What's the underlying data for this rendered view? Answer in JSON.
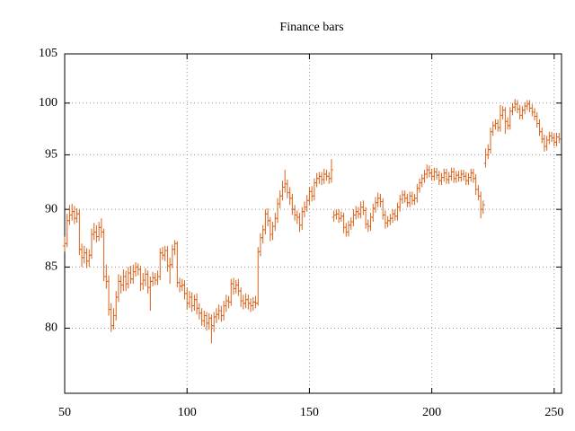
{
  "chart_data": {
    "type": "financebars",
    "title": "Finance bars",
    "color": "#d9621a",
    "grid": true,
    "ylog": true,
    "xlim": [
      50,
      253
    ],
    "xticks": [
      50,
      100,
      150,
      200,
      250
    ],
    "ylim": [
      75,
      105
    ],
    "yticks": [
      80,
      85,
      90,
      95,
      100,
      105
    ],
    "x": [
      50,
      51,
      52,
      53,
      54,
      55,
      56,
      57,
      58,
      59,
      60,
      61,
      62,
      63,
      64,
      65,
      66,
      67,
      68,
      69,
      70,
      71,
      72,
      73,
      74,
      75,
      76,
      77,
      78,
      79,
      80,
      81,
      82,
      83,
      84,
      85,
      86,
      87,
      88,
      89,
      90,
      91,
      92,
      93,
      94,
      95,
      96,
      97,
      98,
      99,
      100,
      101,
      102,
      103,
      104,
      105,
      106,
      107,
      108,
      109,
      110,
      111,
      112,
      113,
      114,
      115,
      116,
      117,
      118,
      119,
      120,
      121,
      122,
      123,
      124,
      125,
      126,
      127,
      128,
      129,
      130,
      131,
      132,
      133,
      134,
      135,
      136,
      137,
      138,
      139,
      140,
      141,
      142,
      143,
      144,
      145,
      146,
      147,
      148,
      149,
      150,
      151,
      152,
      153,
      154,
      155,
      156,
      157,
      158,
      159,
      160,
      161,
      162,
      163,
      164,
      165,
      166,
      167,
      168,
      169,
      170,
      171,
      172,
      173,
      174,
      175,
      176,
      177,
      178,
      179,
      180,
      181,
      182,
      183,
      184,
      185,
      186,
      187,
      188,
      189,
      190,
      191,
      192,
      193,
      194,
      195,
      196,
      197,
      198,
      199,
      200,
      201,
      202,
      203,
      204,
      205,
      206,
      207,
      208,
      209,
      210,
      211,
      212,
      213,
      214,
      215,
      216,
      217,
      218,
      219,
      220,
      221,
      222,
      223,
      224,
      225,
      226,
      227,
      228,
      229,
      230,
      231,
      232,
      233,
      234,
      235,
      236,
      237,
      238,
      239,
      240,
      241,
      242,
      243,
      244,
      245,
      246,
      247,
      248,
      249,
      250,
      251,
      252
    ],
    "open": [
      86.8,
      87.0,
      89.0,
      89.5,
      89.8,
      89.2,
      89.6,
      86.5,
      85.8,
      86.2,
      85.5,
      86.0,
      87.8,
      88.0,
      87.6,
      88.4,
      88.0,
      84.2,
      83.8,
      81.5,
      80.2,
      81.0,
      82.5,
      83.8,
      83.5,
      84.2,
      83.6,
      84.5,
      84.0,
      84.6,
      85.0,
      84.8,
      83.6,
      83.9,
      84.4,
      83.3,
      83.8,
      84.1,
      83.9,
      84.2,
      86.2,
      86.0,
      86.4,
      85.1,
      85.2,
      86.5,
      87.0,
      83.7,
      83.4,
      83.5,
      82.8,
      82.0,
      82.5,
      81.8,
      82.3,
      81.6,
      81.2,
      80.6,
      81.0,
      80.4,
      80.8,
      80.2,
      80.9,
      81.1,
      81.4,
      81.0,
      81.8,
      82.2,
      82.1,
      83.6,
      83.2,
      83.5,
      83.0,
      82.2,
      82.0,
      82.3,
      82.0,
      81.8,
      82.1,
      82.0,
      86.3,
      87.5,
      88.2,
      89.6,
      89.0,
      87.8,
      88.5,
      89.2,
      90.5,
      91.2,
      92.0,
      92.3,
      91.5,
      91.0,
      90.0,
      89.5,
      89.3,
      88.6,
      89.8,
      90.2,
      90.8,
      91.6,
      91.2,
      92.4,
      92.8,
      93.0,
      92.7,
      93.2,
      93.0,
      92.8,
      89.3,
      89.5,
      89.6,
      89.2,
      89.4,
      88.4,
      88.0,
      88.6,
      88.9,
      89.5,
      89.8,
      89.6,
      90.2,
      89.9,
      88.7,
      88.5,
      89.3,
      90.1,
      90.6,
      91.0,
      90.7,
      89.5,
      88.8,
      89.0,
      89.2,
      89.6,
      89.4,
      90.2,
      90.9,
      91.3,
      91.0,
      90.6,
      91.2,
      90.8,
      91.0,
      91.9,
      92.4,
      92.8,
      93.2,
      93.6,
      93.3,
      93.0,
      93.4,
      93.1,
      92.6,
      92.9,
      93.3,
      92.7,
      93.0,
      93.4,
      92.8,
      93.1,
      92.9,
      93.2,
      93.0,
      92.6,
      92.9,
      93.3,
      92.8,
      91.8,
      91.2,
      90.0,
      94.2,
      95.0,
      95.5,
      97.2,
      97.8,
      98.0,
      97.6,
      98.8,
      99.3,
      98.2,
      97.8,
      99.2,
      99.6,
      99.9,
      99.4,
      98.8,
      99.3,
      99.7,
      99.9,
      99.5,
      99.1,
      98.7,
      98.0,
      97.2,
      96.5,
      95.8,
      96.4,
      96.8,
      96.6,
      96.2,
      96.7
    ],
    "high": [
      87.6,
      89.6,
      90.4,
      90.5,
      90.3,
      90.1,
      90.0,
      87.0,
      86.8,
      86.6,
      86.5,
      88.3,
      88.8,
      88.6,
      88.9,
      89.2,
      88.3,
      85.2,
      84.3,
      82.0,
      81.6,
      83.0,
      84.4,
      84.3,
      84.8,
      84.7,
      85.0,
      85.1,
      85.2,
      85.4,
      85.3,
      85.1,
      84.5,
      84.9,
      84.7,
      84.2,
      84.6,
      84.5,
      84.7,
      86.6,
      86.7,
      86.8,
      86.8,
      85.8,
      86.9,
      87.3,
      87.2,
      84.1,
      84.0,
      83.9,
      83.3,
      83.0,
      82.9,
      82.7,
      82.8,
      82.0,
      81.6,
      81.4,
      81.3,
      81.2,
      81.1,
      81.3,
      81.6,
      81.9,
      81.8,
      82.2,
      82.7,
      82.6,
      84.0,
      84.1,
      83.9,
      84.0,
      83.3,
      82.7,
      82.8,
      82.7,
      82.4,
      82.5,
      82.6,
      86.7,
      87.9,
      88.6,
      90.0,
      90.1,
      89.3,
      88.9,
      89.7,
      91.0,
      91.7,
      92.6,
      93.6,
      92.7,
      92.0,
      91.4,
      90.4,
      89.9,
      89.7,
      90.2,
      90.7,
      91.3,
      92.0,
      92.1,
      92.8,
      93.3,
      93.4,
      93.4,
      93.7,
      93.6,
      93.4,
      94.6,
      89.9,
      90.0,
      90.0,
      89.8,
      89.7,
      88.8,
      89.0,
      89.3,
      90.0,
      90.3,
      90.2,
      90.7,
      90.8,
      90.2,
      89.1,
      89.7,
      90.5,
      91.1,
      91.5,
      91.4,
      91.0,
      89.9,
      89.4,
      89.6,
      90.0,
      90.0,
      90.6,
      91.3,
      91.7,
      91.7,
      91.4,
      91.6,
      91.6,
      91.4,
      92.3,
      92.8,
      93.2,
      93.6,
      94.1,
      94.0,
      93.7,
      93.8,
      93.8,
      93.5,
      93.3,
      93.7,
      93.7,
      93.4,
      93.8,
      93.8,
      93.5,
      93.5,
      93.6,
      93.6,
      93.4,
      93.3,
      93.7,
      93.7,
      93.2,
      92.2,
      91.6,
      90.8,
      95.6,
      96.0,
      97.6,
      98.2,
      98.4,
      98.4,
      99.8,
      99.7,
      99.6,
      98.6,
      99.6,
      100.0,
      100.4,
      100.3,
      99.8,
      99.7,
      100.1,
      100.3,
      100.3,
      99.9,
      99.5,
      99.1,
      98.4,
      97.6,
      96.9,
      96.8,
      97.2,
      97.2,
      97.0,
      97.1,
      97.1
    ],
    "low": [
      86.3,
      86.7,
      88.6,
      89.0,
      88.7,
      88.8,
      86.0,
      85.0,
      85.3,
      84.9,
      85.0,
      85.7,
      87.3,
      87.1,
      87.2,
      87.5,
      83.8,
      83.2,
      81.0,
      79.7,
      79.9,
      80.6,
      82.1,
      82.8,
      83.0,
      83.0,
      83.2,
      83.6,
      83.6,
      84.2,
      84.3,
      83.0,
      83.1,
      83.4,
      82.8,
      81.4,
      83.4,
      83.5,
      83.5,
      83.9,
      85.6,
      85.5,
      84.6,
      83.6,
      84.9,
      86.0,
      83.3,
      82.9,
      83.0,
      82.3,
      81.5,
      81.6,
      81.3,
      81.4,
      81.1,
      80.7,
      80.2,
      80.1,
      79.8,
      79.9,
      78.8,
      79.7,
      80.4,
      80.7,
      80.5,
      80.6,
      81.3,
      81.6,
      81.8,
      82.7,
      82.8,
      82.6,
      81.7,
      81.5,
      81.6,
      81.5,
      81.3,
      81.4,
      81.6,
      81.8,
      85.9,
      87.0,
      87.8,
      88.5,
      87.2,
      87.3,
      88.1,
      88.8,
      90.1,
      90.8,
      91.5,
      91.0,
      90.4,
      89.5,
      89.0,
      88.7,
      88.0,
      88.2,
      89.3,
      89.8,
      90.4,
      90.7,
      90.8,
      92.0,
      92.3,
      92.2,
      92.3,
      92.6,
      92.3,
      92.4,
      88.9,
      89.1,
      88.8,
      88.9,
      87.9,
      87.6,
      87.6,
      88.2,
      88.5,
      89.1,
      89.2,
      89.2,
      89.5,
      88.3,
      88.0,
      88.1,
      88.9,
      89.7,
      90.2,
      90.2,
      89.1,
      88.3,
      88.4,
      88.6,
      88.8,
      89.0,
      89.0,
      89.8,
      90.5,
      90.6,
      90.2,
      90.2,
      90.4,
      90.4,
      90.6,
      91.5,
      92.0,
      92.4,
      92.8,
      92.9,
      92.6,
      92.6,
      92.7,
      92.2,
      92.2,
      92.5,
      92.3,
      92.3,
      92.6,
      92.4,
      92.4,
      92.5,
      92.5,
      92.6,
      92.2,
      92.2,
      92.5,
      92.4,
      91.3,
      90.8,
      89.2,
      89.6,
      93.8,
      94.6,
      95.1,
      96.8,
      97.4,
      97.2,
      97.2,
      98.4,
      97.0,
      97.4,
      97.4,
      98.8,
      99.2,
      99.0,
      98.4,
      98.4,
      98.9,
      99.3,
      99.1,
      98.7,
      98.3,
      97.6,
      96.8,
      96.1,
      95.3,
      95.4,
      96.0,
      96.2,
      95.8,
      95.8,
      96.1
    ],
    "close": [
      87.0,
      89.0,
      89.5,
      89.8,
      89.2,
      89.6,
      86.5,
      85.8,
      86.2,
      85.5,
      86.0,
      87.8,
      88.0,
      87.6,
      88.4,
      88.0,
      84.2,
      83.8,
      81.5,
      80.2,
      81.0,
      82.5,
      83.8,
      83.5,
      84.2,
      83.6,
      84.5,
      84.0,
      84.6,
      85.0,
      84.8,
      83.6,
      83.9,
      84.4,
      83.3,
      83.8,
      84.1,
      83.9,
      84.2,
      86.2,
      86.0,
      86.4,
      85.1,
      85.2,
      86.5,
      87.0,
      83.7,
      83.4,
      83.5,
      82.8,
      82.0,
      82.5,
      81.8,
      82.3,
      81.6,
      81.2,
      80.6,
      81.0,
      80.4,
      80.8,
      80.2,
      80.9,
      81.1,
      81.4,
      81.0,
      81.8,
      82.2,
      82.1,
      83.6,
      83.2,
      83.5,
      83.0,
      82.2,
      82.0,
      82.3,
      82.0,
      81.8,
      82.1,
      82.0,
      86.3,
      87.5,
      88.2,
      89.6,
      89.0,
      87.8,
      88.5,
      89.2,
      90.5,
      91.2,
      92.0,
      92.3,
      91.5,
      91.0,
      90.0,
      89.5,
      89.3,
      88.6,
      89.8,
      90.2,
      90.8,
      91.6,
      91.2,
      92.4,
      92.8,
      93.0,
      92.7,
      93.2,
      93.0,
      92.8,
      93.6,
      89.5,
      89.6,
      89.2,
      89.4,
      88.4,
      88.0,
      88.6,
      88.9,
      89.5,
      89.8,
      89.6,
      90.2,
      89.9,
      88.7,
      88.5,
      89.3,
      90.1,
      90.6,
      91.0,
      90.7,
      89.5,
      88.8,
      89.0,
      89.2,
      89.6,
      89.4,
      90.2,
      90.9,
      91.3,
      91.0,
      90.6,
      91.2,
      90.8,
      91.0,
      91.9,
      92.4,
      92.8,
      93.2,
      93.6,
      93.3,
      93.0,
      93.4,
      93.1,
      92.6,
      92.9,
      93.3,
      92.7,
      93.0,
      93.4,
      92.8,
      93.1,
      92.9,
      93.2,
      93.0,
      92.6,
      92.9,
      93.3,
      92.8,
      91.8,
      91.2,
      90.0,
      90.4,
      95.0,
      95.5,
      97.2,
      97.8,
      98.0,
      97.6,
      98.8,
      99.3,
      98.2,
      97.8,
      99.2,
      99.6,
      99.9,
      99.4,
      98.8,
      99.3,
      99.7,
      99.9,
      99.5,
      99.1,
      98.7,
      98.0,
      97.2,
      96.5,
      95.8,
      96.4,
      96.8,
      96.6,
      96.2,
      96.7,
      96.5
    ]
  }
}
